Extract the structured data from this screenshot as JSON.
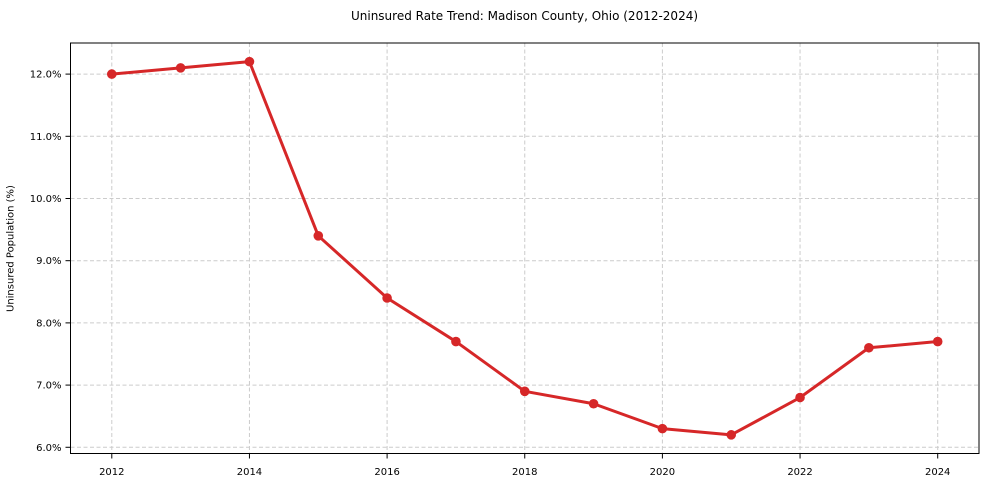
{
  "chart_data": {
    "type": "line",
    "title": "Uninsured Rate Trend: Madison County, Ohio (2012-2024)",
    "xlabel": "",
    "ylabel": "Uninsured Population (%)",
    "x": [
      2012,
      2013,
      2014,
      2015,
      2016,
      2017,
      2018,
      2019,
      2020,
      2021,
      2022,
      2023,
      2024
    ],
    "y": [
      12.0,
      12.1,
      12.2,
      9.4,
      8.4,
      7.7,
      6.9,
      6.7,
      6.3,
      6.2,
      6.8,
      7.6,
      7.7
    ],
    "xlim": [
      2011.4,
      2024.6
    ],
    "ylim": [
      5.9,
      12.5
    ],
    "xtick_values": [
      2012,
      2014,
      2016,
      2018,
      2020,
      2022,
      2024
    ],
    "xtick_labels": [
      "2012",
      "2014",
      "2016",
      "2018",
      "2020",
      "2022",
      "2024"
    ],
    "ytick_values": [
      6,
      7,
      8,
      9,
      10,
      11,
      12
    ],
    "ytick_labels": [
      "6.0%",
      "7.0%",
      "8.0%",
      "9.0%",
      "10.0%",
      "11.0%",
      "12.0%"
    ],
    "grid": true,
    "grid_style": "dashed",
    "legend": "none",
    "marker": "circle",
    "colors": {
      "line": "#d62728",
      "marker": "#d62728",
      "grid": "#cccccc",
      "axis": "#000000",
      "text": "#000000",
      "background": "#ffffff"
    }
  }
}
